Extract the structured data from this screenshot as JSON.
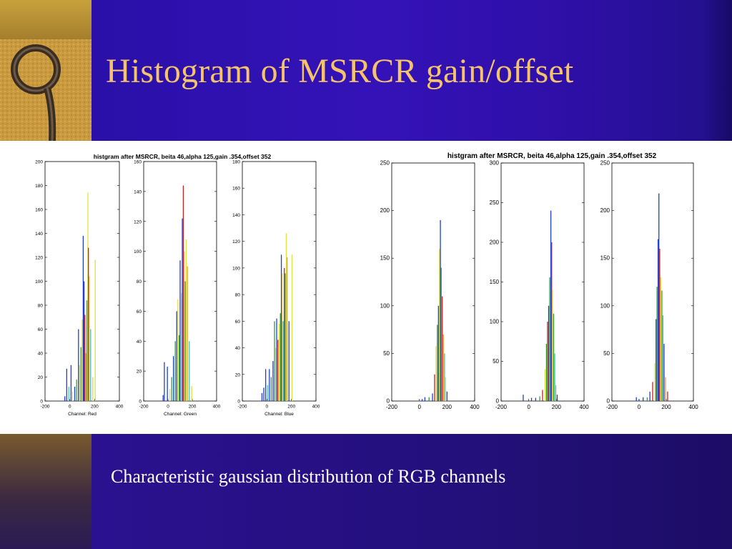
{
  "slide": {
    "title": "Histogram of MSRCR gain/offset",
    "caption": "Characteristic gaussian distribution of RGB channels",
    "colors": {
      "title": "#f5c46a",
      "caption": "#ffffff",
      "background": "#2a10a8"
    }
  },
  "chart_data": [
    {
      "type": "bar",
      "group_title": "histgram after MSRCR, beita 46,alpha 125,gain .354,offset 352",
      "panels": [
        {
          "xlabel": "Channel: Red",
          "ylim": [
            0,
            200
          ],
          "yticks": [
            0,
            20,
            40,
            60,
            80,
            100,
            120,
            140,
            160,
            180,
            200
          ],
          "xticks": [
            -200,
            0,
            200,
            400
          ],
          "bars": [
            [
              -40,
              4,
              "#1f3fcf"
            ],
            [
              -25,
              27,
              "#1f3fcf"
            ],
            [
              -8,
              12,
              "#40c0c0"
            ],
            [
              10,
              30,
              "#1f3fcf"
            ],
            [
              22,
              8,
              "#e0e040"
            ],
            [
              40,
              12,
              "#1f3fcf"
            ],
            [
              55,
              18,
              "#30a030"
            ],
            [
              70,
              60,
              "#1f3fcf"
            ],
            [
              78,
              30,
              "#e0e040"
            ],
            [
              90,
              45,
              "#30a030"
            ],
            [
              100,
              68,
              "#e0e040"
            ],
            [
              108,
              138,
              "#1f3fcf"
            ],
            [
              115,
              100,
              "#1f3fcf"
            ],
            [
              122,
              72,
              "#cc2020"
            ],
            [
              130,
              40,
              "#e0c060"
            ],
            [
              138,
              84,
              "#30a030"
            ],
            [
              146,
              174,
              "#e0e040"
            ],
            [
              150,
              128,
              "#cc2020"
            ],
            [
              156,
              104,
              "#e0a040"
            ],
            [
              168,
              60,
              "#40c0c0"
            ],
            [
              185,
              20,
              "#e0e040"
            ],
            [
              205,
              118,
              "#e0e040"
            ]
          ]
        },
        {
          "xlabel": "Channel: Green",
          "ylim": [
            0,
            160
          ],
          "yticks": [
            0,
            20,
            40,
            60,
            80,
            100,
            120,
            140,
            160
          ],
          "xticks": [
            -200,
            0,
            200,
            400
          ],
          "bars": [
            [
              -40,
              4,
              "#1f3fcf"
            ],
            [
              -30,
              26,
              "#1f3fcf"
            ],
            [
              -5,
              23,
              "#1f3fcf"
            ],
            [
              15,
              8,
              "#e0e040"
            ],
            [
              30,
              16,
              "#30a030"
            ],
            [
              45,
              30,
              "#1f3fcf"
            ],
            [
              60,
              40,
              "#30a030"
            ],
            [
              72,
              60,
              "#1f3fcf"
            ],
            [
              82,
              68,
              "#e0e040"
            ],
            [
              92,
              44,
              "#30a030"
            ],
            [
              100,
              94,
              "#1f3fcf"
            ],
            [
              110,
              72,
              "#e0e040"
            ],
            [
              118,
              122,
              "#1f3fcf"
            ],
            [
              126,
              144,
              "#cc2020"
            ],
            [
              134,
              100,
              "#e0c060"
            ],
            [
              142,
              80,
              "#30a030"
            ],
            [
              150,
              108,
              "#e0e040"
            ],
            [
              160,
              90,
              "#e0a040"
            ],
            [
              175,
              40,
              "#40c0c0"
            ],
            [
              195,
              10,
              "#e0e040"
            ]
          ]
        },
        {
          "xlabel": "Channel: Blue",
          "ylim": [
            0,
            180
          ],
          "yticks": [
            0,
            20,
            40,
            60,
            80,
            100,
            120,
            140,
            160,
            180
          ],
          "xticks": [
            -200,
            0,
            200,
            400
          ],
          "bars": [
            [
              -40,
              6,
              "#1f3fcf"
            ],
            [
              -25,
              10,
              "#1f3fcf"
            ],
            [
              -10,
              24,
              "#1f3fcf"
            ],
            [
              5,
              12,
              "#40c0c0"
            ],
            [
              20,
              24,
              "#1f3fcf"
            ],
            [
              35,
              18,
              "#30a030"
            ],
            [
              50,
              30,
              "#1f3fcf"
            ],
            [
              62,
              60,
              "#30a030"
            ],
            [
              72,
              40,
              "#e0e040"
            ],
            [
              80,
              62,
              "#1f3fcf"
            ],
            [
              90,
              46,
              "#cc2020"
            ],
            [
              100,
              58,
              "#e0e040"
            ],
            [
              110,
              66,
              "#30a030"
            ],
            [
              118,
              110,
              "#1f3fcf"
            ],
            [
              125,
              96,
              "#e0c060"
            ],
            [
              133,
              60,
              "#40c0c0"
            ],
            [
              142,
              100,
              "#cc2020"
            ],
            [
              150,
              96,
              "#30a030"
            ],
            [
              158,
              126,
              "#e0e040"
            ],
            [
              165,
              108,
              "#e0a040"
            ],
            [
              180,
              60,
              "#1f3fcf"
            ],
            [
              205,
              110,
              "#e0e040"
            ]
          ]
        }
      ]
    },
    {
      "type": "bar",
      "group_title": "histgram after MSRCR, beita 46,alpha 125,gain .354,offset 352",
      "panels": [
        {
          "xlabel": "",
          "ylim": [
            0,
            250
          ],
          "yticks": [
            0,
            50,
            100,
            150,
            200,
            250
          ],
          "xticks": [
            -200,
            0,
            200,
            400
          ],
          "bars": [
            [
              20,
              2,
              "#1f3fcf"
            ],
            [
              40,
              4,
              "#1f3fcf"
            ],
            [
              70,
              4,
              "#30a030"
            ],
            [
              95,
              8,
              "#1f3fcf"
            ],
            [
              110,
              28,
              "#cc2020"
            ],
            [
              120,
              58,
              "#e0e040"
            ],
            [
              130,
              80,
              "#30a030"
            ],
            [
              138,
              100,
              "#1f3fcf"
            ],
            [
              146,
              160,
              "#e0e040"
            ],
            [
              152,
              190,
              "#1f3fcf"
            ],
            [
              158,
              140,
              "#30a030"
            ],
            [
              166,
              110,
              "#cc2020"
            ],
            [
              174,
              70,
              "#e0a040"
            ],
            [
              182,
              50,
              "#40c0c0"
            ],
            [
              190,
              25,
              "#e0e040"
            ],
            [
              200,
              10,
              "#1f3fcf"
            ]
          ]
        },
        {
          "xlabel": "",
          "ylim": [
            0,
            300
          ],
          "yticks": [
            0,
            50,
            100,
            150,
            200,
            250,
            300
          ],
          "xticks": [
            -200,
            0,
            200,
            400
          ],
          "bars": [
            [
              -40,
              8,
              "#1f3fcf"
            ],
            [
              20,
              4,
              "#1f3fcf"
            ],
            [
              50,
              4,
              "#1f3fcf"
            ],
            [
              80,
              6,
              "#30a030"
            ],
            [
              100,
              14,
              "#cc2020"
            ],
            [
              118,
              40,
              "#e0e040"
            ],
            [
              128,
              72,
              "#30a030"
            ],
            [
              136,
              100,
              "#cc2020"
            ],
            [
              144,
              120,
              "#1f3fcf"
            ],
            [
              152,
              156,
              "#30a030"
            ],
            [
              160,
              240,
              "#1f3fcf"
            ],
            [
              166,
              200,
              "#cc2020"
            ],
            [
              172,
              140,
              "#e0e040"
            ],
            [
              180,
              110,
              "#30a030"
            ],
            [
              188,
              60,
              "#40c0c0"
            ],
            [
              196,
              20,
              "#e0a040"
            ],
            [
              206,
              8,
              "#1f3fcf"
            ]
          ]
        },
        {
          "xlabel": "",
          "ylim": [
            0,
            250
          ],
          "yticks": [
            0,
            50,
            100,
            150,
            200,
            250
          ],
          "xticks": [
            -200,
            0,
            200,
            400
          ],
          "bars": [
            [
              -20,
              4,
              "#1f3fcf"
            ],
            [
              0,
              2,
              "#1f3fcf"
            ],
            [
              30,
              4,
              "#1f3fcf"
            ],
            [
              60,
              4,
              "#30a030"
            ],
            [
              80,
              10,
              "#1f3fcf"
            ],
            [
              100,
              20,
              "#cc2020"
            ],
            [
              115,
              40,
              "#e0e040"
            ],
            [
              125,
              86,
              "#1f3fcf"
            ],
            [
              132,
              120,
              "#30a030"
            ],
            [
              140,
              170,
              "#1f3fcf"
            ],
            [
              146,
              218,
              "#1f3fcf"
            ],
            [
              152,
              160,
              "#cc2020"
            ],
            [
              160,
              130,
              "#e0e040"
            ],
            [
              168,
              116,
              "#30a030"
            ],
            [
              176,
              90,
              "#40c0c0"
            ],
            [
              184,
              60,
              "#1f3fcf"
            ],
            [
              195,
              25,
              "#e0a040"
            ],
            [
              210,
              10,
              "#cc2020"
            ]
          ]
        }
      ]
    }
  ]
}
